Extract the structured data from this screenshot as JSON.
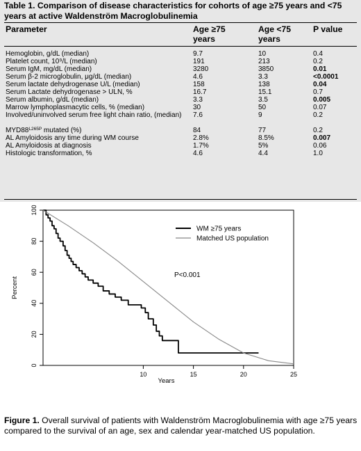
{
  "table": {
    "title": "Table 1. Comparison of disease characteristics for cohorts of age ≥75 years and <75 years at active Waldenström Macroglobulinemia",
    "headers": [
      "Parameter",
      "Age ≥75 years",
      "Age <75 years",
      "P value"
    ],
    "rows": [
      {
        "param": "Hemoglobin, g/dL (median)",
        "age_ge75": "9.7",
        "age_lt75": "10",
        "p": "0.4",
        "bold": false
      },
      {
        "param": "Platelet count, 10⁹/L (median)",
        "age_ge75": "191",
        "age_lt75": "213",
        "p": "0.2",
        "bold": false
      },
      {
        "param": "Serum IgM, mg/dL (median)",
        "age_ge75": "3280",
        "age_lt75": "3850",
        "p": "0.01",
        "bold": true
      },
      {
        "param": "Serum β-2 microglobulin, μg/dL (median)",
        "age_ge75": "4.6",
        "age_lt75": "3.3",
        "p": "<0.0001",
        "bold": true
      },
      {
        "param": "Serum lactate dehydrogenase  U/L (median)",
        "age_ge75": "158",
        "age_lt75": "138",
        "p": "0.04",
        "bold": true
      },
      {
        "param": "Serum Lactate dehydrogenase > ULN, %",
        "age_ge75": "16.7",
        "age_lt75": "15.1",
        "p": "0.7",
        "bold": false
      },
      {
        "param": "Serum albumin, g/dL (median)",
        "age_ge75": "3.3",
        "age_lt75": "3.5",
        "p": "0.005",
        "bold": true
      },
      {
        "param": "Marrow lymphoplasmacytic cells, % (median)",
        "age_ge75": "30",
        "age_lt75": "50",
        "p": "0.07",
        "bold": false
      },
      {
        "param": "Involved/uninvolved serum free light chain ratio, (median)",
        "age_ge75": "7.6",
        "age_lt75": "9",
        "p": "0.2",
        "bold": false
      },
      {
        "param": "MYD88",
        "param_sup": "L265P",
        "param_suffix": " mutated (%)",
        "age_ge75": "84",
        "age_lt75": "77",
        "p": "0.2",
        "bold": false
      },
      {
        "param": "AL Amyloidosis any time during WM course",
        "age_ge75": "2.8%",
        "age_lt75": "8.5%",
        "p": "0.007",
        "bold": true
      },
      {
        "param": "AL Amyloidosis at diagnosis",
        "age_ge75": "1.7%",
        "age_lt75": "5%",
        "p": "0.06",
        "bold": false
      },
      {
        "param": "Histologic transformation, %",
        "age_ge75": "4.6",
        "age_lt75": "4.4",
        "p": "1.0",
        "bold": false
      }
    ]
  },
  "chart_data": {
    "type": "line",
    "title": "",
    "xlabel": "Years",
    "ylabel": "Percent",
    "xlim": [
      0,
      25
    ],
    "ylim": [
      0,
      100
    ],
    "x_ticks": [
      10,
      15,
      20,
      25
    ],
    "y_ticks": [
      0,
      20,
      40,
      60,
      80,
      100
    ],
    "legend_position": "top-right",
    "annotation": "P<0.001",
    "grid": false,
    "series": [
      {
        "name": "WM ≥75 years",
        "style": "step",
        "color": "#000000",
        "points": [
          [
            0,
            100
          ],
          [
            0.3,
            97
          ],
          [
            0.5,
            95
          ],
          [
            0.7,
            93
          ],
          [
            0.9,
            90
          ],
          [
            1.1,
            88
          ],
          [
            1.3,
            85
          ],
          [
            1.5,
            82
          ],
          [
            1.7,
            80
          ],
          [
            2.0,
            77
          ],
          [
            2.2,
            74
          ],
          [
            2.4,
            71
          ],
          [
            2.6,
            69
          ],
          [
            2.8,
            67
          ],
          [
            3.0,
            65
          ],
          [
            3.3,
            63
          ],
          [
            3.6,
            61
          ],
          [
            3.9,
            59
          ],
          [
            4.2,
            57
          ],
          [
            4.5,
            55
          ],
          [
            5.0,
            53
          ],
          [
            5.5,
            51
          ],
          [
            6.0,
            48
          ],
          [
            6.6,
            46
          ],
          [
            7.2,
            44
          ],
          [
            7.8,
            42
          ],
          [
            8.5,
            39
          ],
          [
            9.8,
            37
          ],
          [
            10.2,
            34
          ],
          [
            10.5,
            30
          ],
          [
            11.0,
            26
          ],
          [
            11.3,
            22
          ],
          [
            11.6,
            19
          ],
          [
            11.9,
            16
          ],
          [
            13.5,
            8
          ],
          [
            21.5,
            8
          ]
        ]
      },
      {
        "name": "Matched US population",
        "style": "smooth",
        "color": "#888888",
        "points": [
          [
            0,
            100
          ],
          [
            2.5,
            90
          ],
          [
            5,
            79
          ],
          [
            7.5,
            67
          ],
          [
            10,
            54
          ],
          [
            12.5,
            41
          ],
          [
            15,
            28
          ],
          [
            17.5,
            17
          ],
          [
            20,
            8
          ],
          [
            22.5,
            3
          ],
          [
            25,
            1
          ]
        ]
      }
    ]
  },
  "caption": {
    "label": "Figure 1.",
    "text": " Overall survival of patients with Waldenström Macroglobulinemia with age ≥75 years compared to the survival of an age, sex and calendar year-matched US population."
  }
}
